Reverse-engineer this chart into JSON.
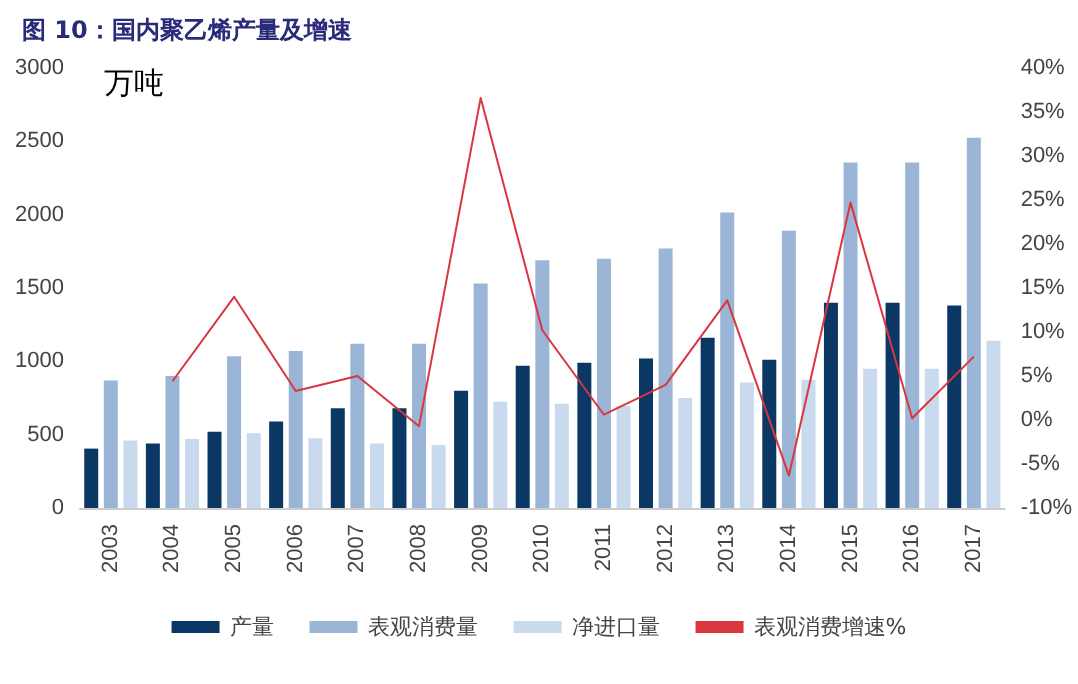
{
  "chart_data": {
    "type": "bar",
    "title": "图 10：国内聚乙烯产量及增速",
    "ylabel": "万吨",
    "categories": [
      "2003",
      "2004",
      "2005",
      "2006",
      "2007",
      "2008",
      "2009",
      "2010",
      "2011",
      "2012",
      "2013",
      "2014",
      "2015",
      "2016",
      "2017"
    ],
    "series": [
      {
        "name": "产量",
        "color": "#0a3764",
        "values": [
          405,
          440,
          520,
          590,
          680,
          680,
          800,
          970,
          990,
          1020,
          1160,
          1010,
          1400,
          1400,
          1380
        ]
      },
      {
        "name": "表观消费量",
        "color": "#9bb5d6",
        "values": [
          870,
          900,
          1035,
          1070,
          1120,
          1120,
          1530,
          1690,
          1700,
          1770,
          2015,
          1890,
          2355,
          2355,
          2525
        ]
      },
      {
        "name": "净进口量",
        "color": "#c9d9ee",
        "values": [
          460,
          470,
          510,
          475,
          440,
          430,
          725,
          710,
          695,
          750,
          855,
          875,
          950,
          950,
          1140
        ]
      },
      {
        "name": "表观消费增速%",
        "type": "line",
        "axis": "y2",
        "color": "#d9363e",
        "values": [
          null,
          4.4,
          14.0,
          3.3,
          5.0,
          -0.7,
          36.6,
          10.2,
          0.6,
          4.0,
          13.6,
          -6.3,
          24.7,
          0.2,
          7.2
        ]
      }
    ],
    "ylim": [
      0,
      3000
    ],
    "yticks": [
      0,
      500,
      1000,
      1500,
      2000,
      2500,
      3000
    ],
    "y2lim": [
      -10,
      40
    ],
    "y2ticks": [
      {
        "value": -10,
        "label": "-10%"
      },
      {
        "value": -5,
        "label": "-5%"
      },
      {
        "value": 0,
        "label": "0%"
      },
      {
        "value": 5,
        "label": "5%"
      },
      {
        "value": 10,
        "label": "10%"
      },
      {
        "value": 15,
        "label": "15%"
      },
      {
        "value": 20,
        "label": "20%"
      },
      {
        "value": 25,
        "label": "25%"
      },
      {
        "value": 30,
        "label": "30%"
      },
      {
        "value": 35,
        "label": "35%"
      },
      {
        "value": 40,
        "label": "40%"
      }
    ],
    "grid": false,
    "legend": "bottom",
    "marker": "none"
  }
}
